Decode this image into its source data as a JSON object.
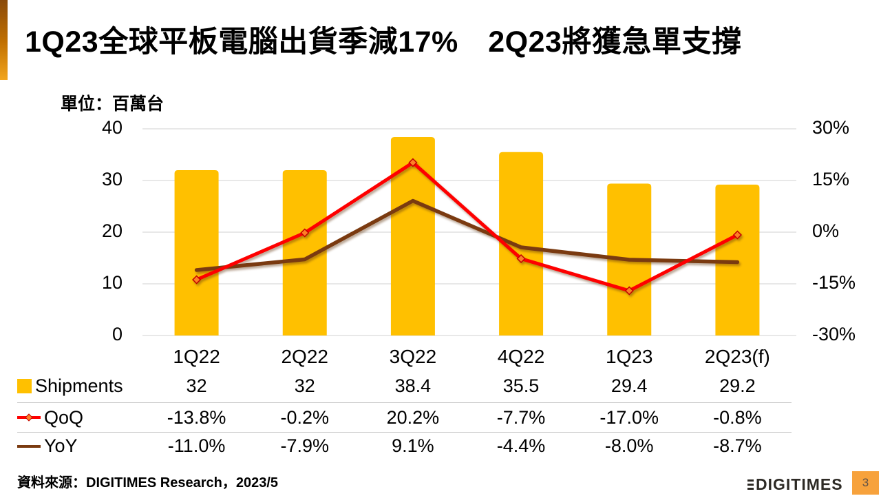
{
  "title": "1Q23全球平板電腦出貨季減17%　2Q23將獲急單支撐",
  "unit_label": "單位：百萬台",
  "chart_data": {
    "type": "combo-bar-line",
    "categories": [
      "1Q22",
      "2Q22",
      "3Q22",
      "4Q22",
      "1Q23",
      "2Q23(f)"
    ],
    "series": [
      {
        "name": "Shipments",
        "type": "bar",
        "axis": "left",
        "color": "#FFC000",
        "values": [
          32,
          32,
          38.4,
          35.5,
          29.4,
          29.2
        ]
      },
      {
        "name": "QoQ",
        "type": "line",
        "axis": "right",
        "color": "#FE0000",
        "marker": "diamond",
        "marker_color": "#FF7F27",
        "marker_stroke": "#C00000",
        "values": [
          -13.8,
          -0.2,
          20.2,
          -7.7,
          -17.0,
          -0.8
        ]
      },
      {
        "name": "YoY",
        "type": "line",
        "axis": "right",
        "color": "#7A3A10",
        "values": [
          -11.0,
          -7.9,
          9.1,
          -4.4,
          -8.0,
          -8.7
        ]
      }
    ],
    "left_axis": {
      "ticks": [
        "40",
        "30",
        "20",
        "10",
        "0"
      ],
      "min": 0,
      "max": 40
    },
    "right_axis": {
      "ticks": [
        "30%",
        "15%",
        "0%",
        "-15%",
        "-30%"
      ],
      "min": -30,
      "max": 30
    },
    "grid": true,
    "legend_position": "table-left"
  },
  "table": {
    "columns": [
      "1Q22",
      "2Q22",
      "3Q22",
      "4Q22",
      "1Q23",
      "2Q23(f)"
    ],
    "rows": [
      {
        "label": "Shipments",
        "legend_icon": "bar-swatch",
        "values": [
          "32",
          "32",
          "38.4",
          "35.5",
          "29.4",
          "29.2"
        ]
      },
      {
        "label": "QoQ",
        "legend_icon": "line-diamond-swatch",
        "values": [
          "-13.8%",
          "-0.2%",
          "20.2%",
          "-7.7%",
          "-17.0%",
          "-0.8%"
        ]
      },
      {
        "label": "YoY",
        "legend_icon": "line-swatch",
        "values": [
          "-11.0%",
          "-7.9%",
          "9.1%",
          "-4.4%",
          "-8.0%",
          "-8.7%"
        ]
      }
    ]
  },
  "footer": {
    "source": "資料來源：DIGITIMES Research，2023/5",
    "logo_text": "DIGITIMES",
    "page_number": "3"
  },
  "colors": {
    "bar": "#FFC000",
    "qoq_line": "#FE0000",
    "yoy_line": "#7A3A10",
    "accent_orange": "#F2A51D",
    "gridline": "#D9D9D9",
    "table_separator": "#C9C9C9"
  }
}
